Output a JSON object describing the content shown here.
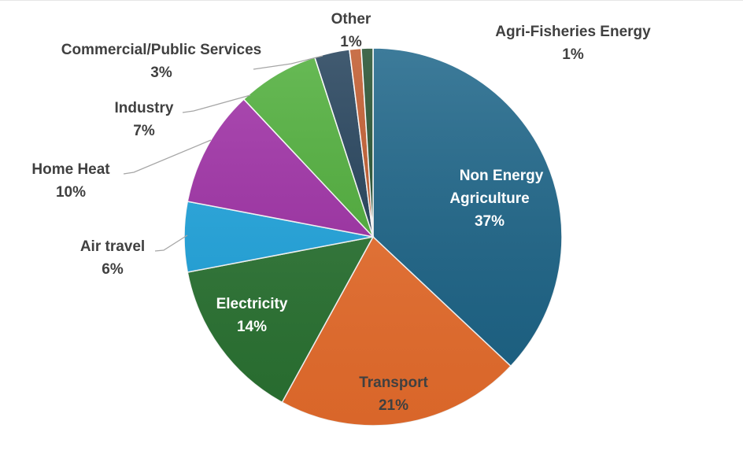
{
  "chart_data": {
    "type": "pie",
    "title": "",
    "start": "top",
    "direction": "clockwise",
    "slices": [
      {
        "label": "Non Energy Agriculture",
        "value": 37,
        "pct_label": "37%",
        "color": "#1b6488",
        "label_color": "#ffffff"
      },
      {
        "label": "Transport",
        "value": 21,
        "pct_label": "21%",
        "color": "#ec6f2d",
        "label_color": "#404040"
      },
      {
        "label": "Electricity",
        "value": 14,
        "pct_label": "14%",
        "color": "#2a7432",
        "label_color": "#ffffff"
      },
      {
        "label": "Air travel",
        "value": 6,
        "pct_label": "6%",
        "color": "#1ea5df",
        "label_color": "#404040"
      },
      {
        "label": "Home Heat",
        "value": 10,
        "pct_label": "10%",
        "color": "#9f2ea6",
        "label_color": "#404040"
      },
      {
        "label": "Industry",
        "value": 7,
        "pct_label": "7%",
        "color": "#4dae38",
        "label_color": "#404040"
      },
      {
        "label": "Commercial/Public Services",
        "value": 3,
        "pct_label": "3%",
        "color": "#203e58",
        "label_color": "#404040"
      },
      {
        "label": "Other",
        "value": 1,
        "pct_label": "1%",
        "color": "#c0582a",
        "label_color": "#404040"
      },
      {
        "label": "Agri-Fisheries Energy",
        "value": 1,
        "pct_label": "1%",
        "color": "#214e2d",
        "label_color": "#404040"
      }
    ]
  }
}
